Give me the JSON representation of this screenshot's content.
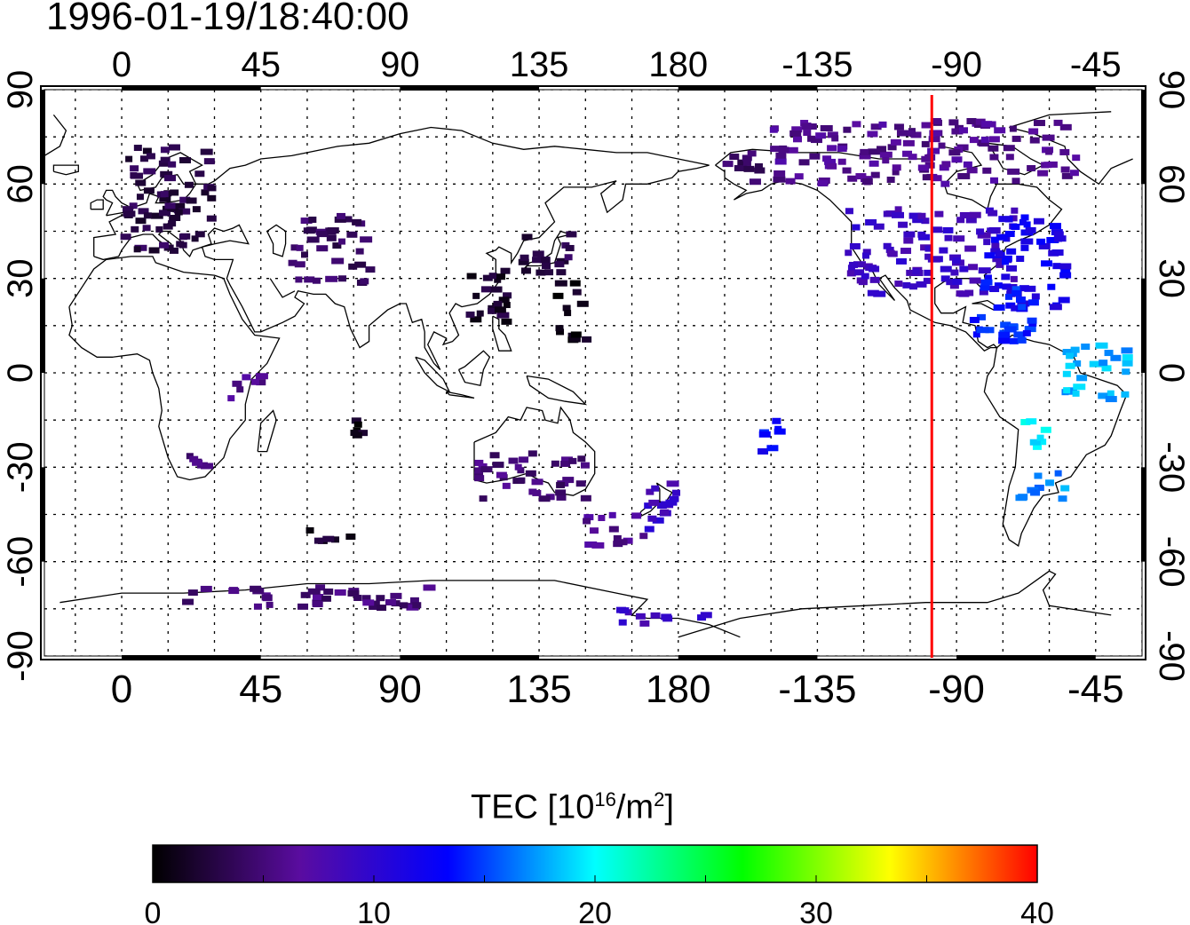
{
  "title": "1996-01-19/18:40:00",
  "map": {
    "lon_ticks_top": [
      "0",
      "45",
      "90",
      "135",
      "180",
      "-135",
      "-90",
      "-45"
    ],
    "lon_ticks_bottom": [
      "0",
      "45",
      "90",
      "135",
      "180",
      "-135",
      "-90",
      "-45"
    ],
    "lat_ticks_left": [
      "90",
      "60",
      "30",
      "0",
      "-30",
      "-60",
      "-90"
    ],
    "lat_ticks_right": [
      "90",
      "60",
      "30",
      "0",
      "-30",
      "-60",
      "-90"
    ],
    "extent": {
      "lon_min": -25,
      "lon_max": 330,
      "lat_min": -90,
      "lat_max": 90
    },
    "grid": true,
    "terminator_lon": -98,
    "terminator_color": "#ff0000"
  },
  "colorbar": {
    "title_prefix": "TEC  [10",
    "title_sup1": "16",
    "title_mid": "/m",
    "title_sup2": "2",
    "title_suffix": "]",
    "ticks": [
      "0",
      "10",
      "20",
      "30",
      "40"
    ],
    "min": 0,
    "max": 40,
    "colors": [
      "#000000",
      "#5a0ca0",
      "#0000ff",
      "#00ffff",
      "#00ff00",
      "#ffff00",
      "#ff0000"
    ]
  },
  "chart_data": {
    "type": "heatmap",
    "title": "1996-01-19/18:40:00",
    "value_label": "TEC [10^16/m^2]",
    "vmin": 0,
    "vmax": 40,
    "clusters": [
      {
        "region": "Europe",
        "lon": [
          0,
          30
        ],
        "lat": [
          38,
          72
        ],
        "tec": 3
      },
      {
        "region": "North America",
        "lon": [
          -125,
          -70
        ],
        "lat": [
          25,
          52
        ],
        "tec": 9
      },
      {
        "region": "Eastern North America",
        "lon": [
          -80,
          -55
        ],
        "lat": [
          20,
          50
        ],
        "tec": 12
      },
      {
        "region": "Caribbean / Central America",
        "lon": [
          -85,
          -65
        ],
        "lat": [
          10,
          30
        ],
        "tec": 14
      },
      {
        "region": "Northern South America",
        "lon": [
          -55,
          -35
        ],
        "lat": [
          -10,
          10
        ],
        "tec": 18
      },
      {
        "region": "Central South America",
        "lon": [
          -70,
          -60
        ],
        "lat": [
          -25,
          -15
        ],
        "tec": 20
      },
      {
        "region": "Southern South America",
        "lon": [
          -70,
          -55
        ],
        "lat": [
          -40,
          -30
        ],
        "tec": 17
      },
      {
        "region": "Japan",
        "lon": [
          128,
          145
        ],
        "lat": [
          30,
          45
        ],
        "tec": 3
      },
      {
        "region": "Western Pacific",
        "lon": [
          140,
          150
        ],
        "lat": [
          10,
          30
        ],
        "tec": 1
      },
      {
        "region": "Eastern Asia",
        "lon": [
          110,
          125
        ],
        "lat": [
          15,
          35
        ],
        "tec": 2
      },
      {
        "region": "Central Asia",
        "lon": [
          55,
          80
        ],
        "lat": [
          28,
          50
        ],
        "tec": 4
      },
      {
        "region": "East Africa",
        "lon": [
          35,
          45
        ],
        "lat": [
          -10,
          0
        ],
        "tec": 6
      },
      {
        "region": "Southern Africa",
        "lon": [
          20,
          30
        ],
        "lat": [
          -30,
          -25
        ],
        "tec": 5
      },
      {
        "region": "Indian Ocean",
        "lon": [
          75,
          80
        ],
        "lat": [
          -20,
          -15
        ],
        "tec": 1
      },
      {
        "region": "Australia",
        "lon": [
          115,
          150
        ],
        "lat": [
          -40,
          -25
        ],
        "tec": 5
      },
      {
        "region": "New Zealand",
        "lon": [
          165,
          180
        ],
        "lat": [
          -50,
          -35
        ],
        "tec": 9
      },
      {
        "region": "Southern Ocean (Australia)",
        "lon": [
          150,
          170
        ],
        "lat": [
          -55,
          -45
        ],
        "tec": 6
      },
      {
        "region": "South Pacific",
        "lon": [
          -155,
          -145
        ],
        "lat": [
          -25,
          -15
        ],
        "tec": 13
      },
      {
        "region": "Arctic Canada",
        "lon": [
          -150,
          -50
        ],
        "lat": [
          60,
          80
        ],
        "tec": 6
      },
      {
        "region": "Alaska",
        "lon": [
          -165,
          -150
        ],
        "lat": [
          60,
          70
        ],
        "tec": 4
      },
      {
        "region": "Antarctica",
        "lon": [
          20,
          100
        ],
        "lat": [
          -75,
          -68
        ],
        "tec": 5
      },
      {
        "region": "Ross Sea",
        "lon": [
          160,
          190
        ],
        "lat": [
          -80,
          -75
        ],
        "tec": 9
      },
      {
        "region": "Southern Indian Ocean",
        "lon": [
          60,
          75
        ],
        "lat": [
          -55,
          -50
        ],
        "tec": 2
      }
    ]
  }
}
